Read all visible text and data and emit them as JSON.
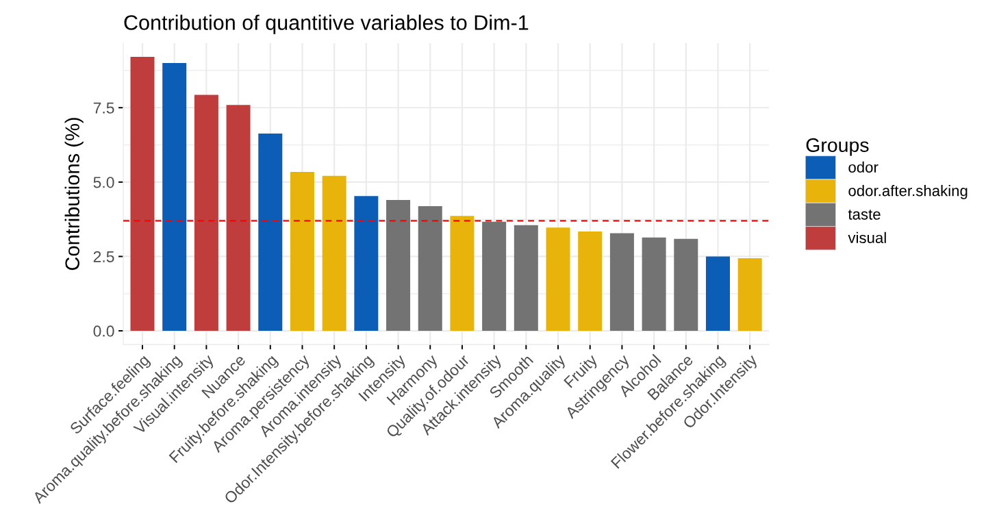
{
  "chart_data": {
    "type": "bar",
    "title": "Contribution of quantitive variables to Dim-1",
    "ylabel": "Contributions (%)",
    "legend_title": "Groups",
    "categories": [
      "Surface.feeling",
      "Aroma.quality.before.shaking",
      "Visual.intensity",
      "Nuance",
      "Fruity.before.shaking",
      "Aroma.persistency",
      "Aroma.intensity",
      "Odor.Intensity.before.shaking",
      "Intensity",
      "Harmony",
      "Quality.of.odour",
      "Attack.intensity",
      "Smooth",
      "Aroma.quality",
      "Fruity",
      "Astringency",
      "Alcohol",
      "Balance",
      "Flower.before.shaking",
      "Odor.Intensity"
    ],
    "series": [
      {
        "name": "odor",
        "color": "#0c5db5",
        "values": [
          null,
          9.0,
          null,
          null,
          6.63,
          null,
          null,
          4.53,
          null,
          null,
          null,
          null,
          null,
          null,
          null,
          null,
          null,
          null,
          2.5,
          null
        ]
      },
      {
        "name": "odor.after.shaking",
        "color": "#e8b40b",
        "values": [
          null,
          null,
          null,
          null,
          null,
          5.34,
          5.21,
          null,
          null,
          null,
          3.86,
          null,
          null,
          3.47,
          3.34,
          null,
          null,
          null,
          null,
          2.44
        ]
      },
      {
        "name": "taste",
        "color": "#737373",
        "values": [
          null,
          null,
          null,
          null,
          null,
          null,
          null,
          null,
          4.4,
          4.19,
          null,
          3.67,
          3.55,
          null,
          null,
          3.28,
          3.14,
          3.09,
          null,
          null
        ]
      },
      {
        "name": "visual",
        "color": "#c03d3e",
        "values": [
          9.21,
          null,
          7.93,
          7.59,
          null,
          null,
          null,
          null,
          null,
          null,
          null,
          null,
          null,
          null,
          null,
          null,
          null,
          null,
          null,
          null
        ]
      }
    ],
    "ylim": [
      -0.46,
      9.67
    ],
    "yticks": [
      {
        "value": 0,
        "label": "0.0"
      },
      {
        "value": 1.25,
        "label": null
      },
      2.5,
      {
        "value": 3.75,
        "label": null
      },
      {
        "value": 5,
        "label": "5.0"
      },
      {
        "value": 6.25,
        "label": null
      },
      7.5,
      {
        "value": 8.75,
        "label": null
      }
    ],
    "ref_lines": [
      {
        "axis": "y",
        "value": 3.7,
        "color": "#ff0000",
        "line_style": "dashed"
      }
    ],
    "grid": true,
    "legend": "right"
  }
}
